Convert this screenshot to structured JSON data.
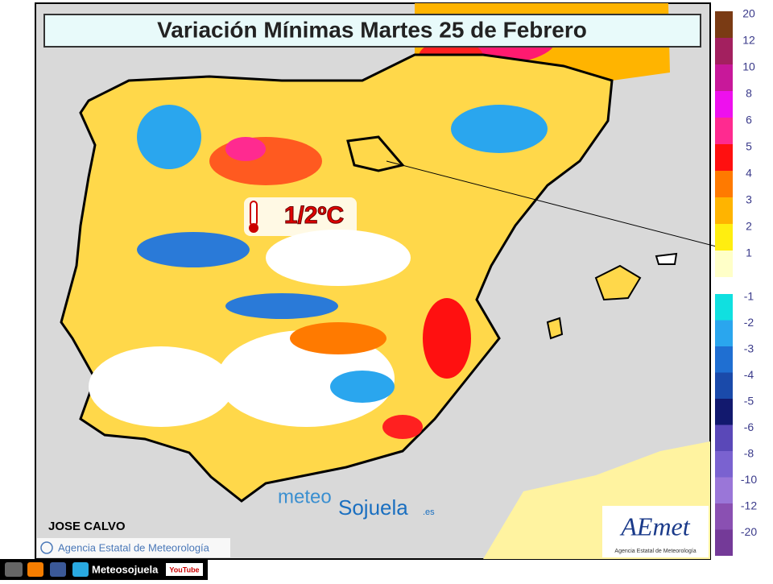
{
  "title": "Variación Mínimas Martes 25 de Febrero",
  "annotation": "1/2ºC",
  "author": "JOSE CALVO",
  "copyright": "Agencia Estatal de Meteorología",
  "watermark": {
    "prefix": "meteo",
    "name": "Sojuela",
    "suffix": ".es"
  },
  "logo": {
    "name": "AEmet",
    "subtitle": "Agencia Estatal de Meteorología"
  },
  "footer": {
    "site": "Meteosojuela",
    "youtube": "YouTube"
  },
  "legend": {
    "positive": [
      {
        "value": 20,
        "color": "#7a3b14"
      },
      {
        "value": 12,
        "color": "#a3205f"
      },
      {
        "value": 10,
        "color": "#c8189a"
      },
      {
        "value": 8,
        "color": "#ee10ee"
      },
      {
        "value": 6,
        "color": "#ff2a90"
      },
      {
        "value": 5,
        "color": "#ff1010"
      },
      {
        "value": 4,
        "color": "#ff7a00"
      },
      {
        "value": 3,
        "color": "#ffb400"
      },
      {
        "value": 2,
        "color": "#ffee10"
      },
      {
        "value": 1,
        "color": "#ffffc8"
      }
    ],
    "negative": [
      {
        "value": -1,
        "color": "#10e0e0"
      },
      {
        "value": -2,
        "color": "#2aa6ee"
      },
      {
        "value": -3,
        "color": "#1f6fd2"
      },
      {
        "value": -4,
        "color": "#1a4aaa"
      },
      {
        "value": -5,
        "color": "#12196e"
      },
      {
        "value": -6,
        "color": "#5a48b8"
      },
      {
        "value": -8,
        "color": "#7a62d0"
      },
      {
        "value": -10,
        "color": "#9a76d8"
      },
      {
        "value": -12,
        "color": "#8a50b2"
      },
      {
        "value": -20,
        "color": "#743a98"
      }
    ]
  }
}
